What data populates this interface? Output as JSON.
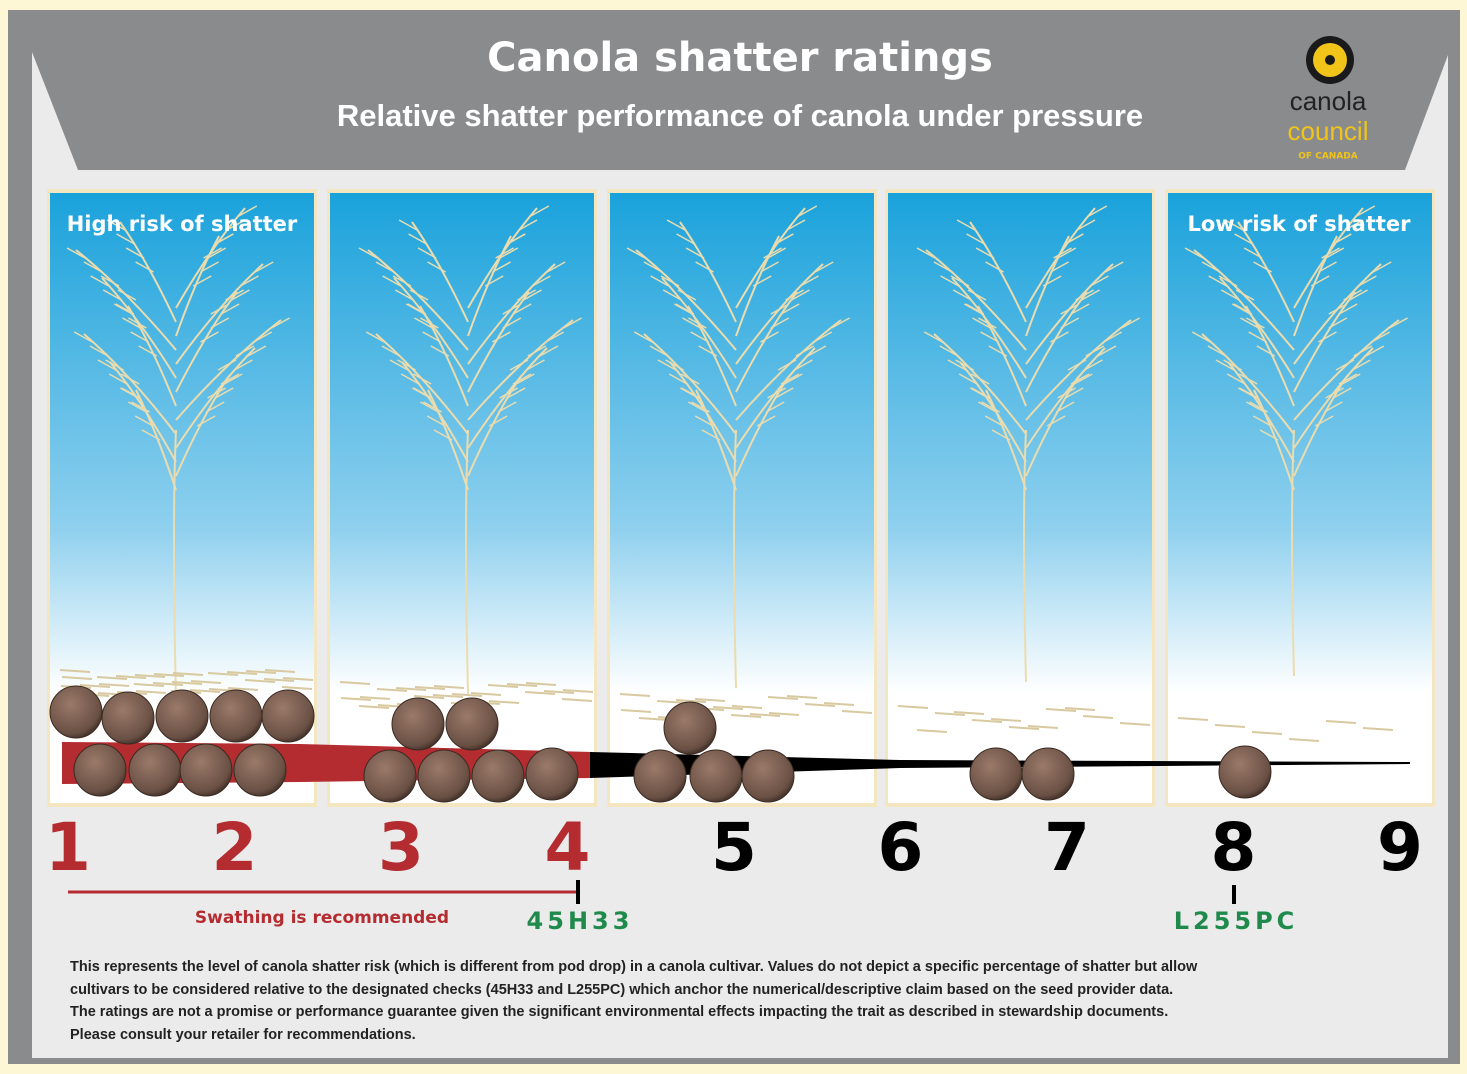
{
  "header": {
    "title": "Canola shatter ratings",
    "subtitle": "Relative shatter performance of canola under pressure"
  },
  "logo": {
    "line1": "canola",
    "line2": "council",
    "line3": "OF CANADA"
  },
  "panels": {
    "left_label": "High risk of shatter",
    "right_label": "Low risk of shatter"
  },
  "scale": [
    1,
    2,
    3,
    4,
    5,
    6,
    7,
    8,
    9
  ],
  "swathing": "Swathing is recommended",
  "checks": [
    "45H33",
    "L255PC"
  ],
  "footnote": [
    "This represents the level of canola shatter risk (which is different from pod drop) in a canola cultivar. Values do not depict a specific percentage of shatter but allow",
    "cultivars to be considered relative to the designated checks (45H33 and L255PC) which anchor the numerical/descriptive claim based on the seed provider data.",
    "The ratings are not a promise or performance guarantee given the significant environmental effects impacting the trait as described in stewardship documents.",
    "Please consult your retailer for recommendations."
  ]
}
